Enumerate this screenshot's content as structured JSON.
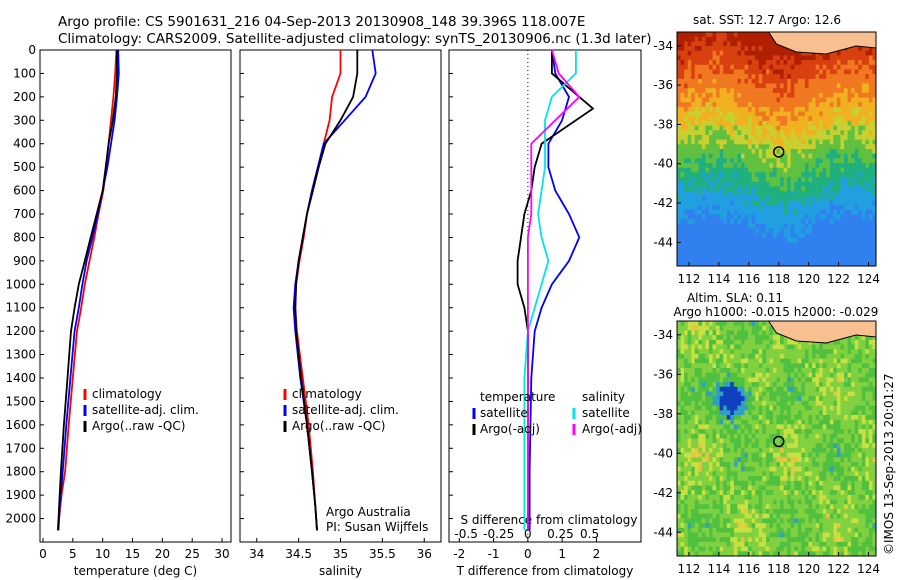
{
  "header": {
    "line1": "Argo profile: CS 5901631_216 04-Sep-2013 20130908_148 39.396S 118.007E",
    "line2": "Climatology: CARS2009. Satellite-adjusted climatology: synTS_20130906.nc (1.3d later)"
  },
  "colors": {
    "climatology": "#ff0000",
    "satellite": "#0000ff",
    "argo": "#000000",
    "satellite_salinity": "#00e5e5",
    "argo_salinity_adj": "#ff00ff"
  },
  "chart_data": [
    {
      "type": "line",
      "panel": "temperature",
      "xlabel": "temperature (deg C)",
      "ylim": [
        2100,
        0
      ],
      "xlim": [
        -0.5,
        31.5
      ],
      "xticks": [
        0,
        5,
        10,
        15,
        20,
        25,
        30
      ],
      "yticks": [
        0,
        100,
        200,
        300,
        400,
        500,
        600,
        700,
        800,
        900,
        1000,
        1100,
        1200,
        1300,
        1400,
        1500,
        1600,
        1700,
        1800,
        1900,
        2000
      ],
      "legend": [
        "climatology",
        "satellite-adj. clim.",
        "Argo(..raw -QC)"
      ],
      "series": [
        {
          "name": "climatology",
          "color": "#ff0000",
          "x": [
            12.3,
            12.1,
            11.8,
            11.4,
            11.0,
            10.6,
            10.1,
            9.3,
            8.6,
            7.8,
            7.0,
            6.4,
            5.7,
            5.0,
            4.3,
            3.7,
            3.1,
            2.7,
            2.5
          ],
          "y": [
            0,
            100,
            200,
            300,
            400,
            500,
            600,
            700,
            800,
            900,
            1000,
            1100,
            1200,
            1400,
            1600,
            1800,
            1900,
            2000,
            2050
          ]
        },
        {
          "name": "satellite-adj. clim.",
          "color": "#0000ff",
          "x": [
            12.6,
            12.7,
            12.4,
            12.0,
            11.4,
            10.8,
            10.0,
            9.2,
            8.3,
            7.3,
            6.6,
            6.0,
            5.3,
            4.6,
            3.9,
            3.3,
            2.8,
            2.6
          ],
          "y": [
            0,
            100,
            200,
            300,
            400,
            500,
            600,
            700,
            800,
            900,
            1000,
            1100,
            1200,
            1400,
            1600,
            1800,
            1950,
            2050
          ]
        },
        {
          "name": "Argo(..raw -QC)",
          "color": "#000000",
          "x": [
            12.4,
            12.4,
            12.2,
            11.7,
            11.0,
            10.5,
            10.0,
            9.0,
            8.0,
            7.0,
            6.0,
            5.3,
            4.7,
            4.1,
            3.5,
            3.0,
            2.7,
            2.5
          ],
          "y": [
            0,
            100,
            200,
            300,
            400,
            500,
            600,
            700,
            800,
            900,
            1000,
            1100,
            1200,
            1400,
            1600,
            1800,
            1950,
            2050
          ]
        }
      ]
    },
    {
      "type": "line",
      "panel": "salinity",
      "xlabel": "salinity",
      "ylim": [
        2100,
        0
      ],
      "xlim": [
        33.8,
        36.2
      ],
      "xticks": [
        34,
        34.5,
        35,
        35.5,
        36
      ],
      "xticklabels": [
        "34",
        "34.5",
        "35",
        "35.5",
        "36"
      ],
      "legend": [
        "climatology",
        "satellite-adj. clim.",
        "Argo(..raw -QC)"
      ],
      "annotation": [
        "Argo Australia",
        "PI: Susan Wijffels"
      ],
      "series": [
        {
          "name": "climatology",
          "color": "#ff0000",
          "x": [
            35.0,
            35.0,
            34.9,
            34.87,
            34.8,
            34.73,
            34.66,
            34.6,
            34.56,
            34.51,
            34.47,
            34.46,
            34.48,
            34.55,
            34.62,
            34.67,
            34.7,
            34.72
          ],
          "y": [
            0,
            100,
            200,
            300,
            400,
            500,
            600,
            700,
            800,
            900,
            1000,
            1100,
            1200,
            1400,
            1600,
            1800,
            1950,
            2050
          ]
        },
        {
          "name": "satellite-adj. clim.",
          "color": "#0000ff",
          "x": [
            35.38,
            35.42,
            35.3,
            35.05,
            34.8,
            34.73,
            34.66,
            34.6,
            34.55,
            34.5,
            34.46,
            34.44,
            34.46,
            34.52,
            34.6,
            34.66,
            34.7,
            34.72
          ],
          "y": [
            0,
            100,
            200,
            300,
            400,
            500,
            600,
            700,
            800,
            900,
            1000,
            1100,
            1200,
            1400,
            1600,
            1800,
            1950,
            2050
          ]
        },
        {
          "name": "Argo(..raw -QC)",
          "color": "#000000",
          "x": [
            35.2,
            35.2,
            35.15,
            35.0,
            34.82,
            34.74,
            34.67,
            34.6,
            34.55,
            34.5,
            34.47,
            34.46,
            34.47,
            34.53,
            34.6,
            34.66,
            34.7,
            34.72
          ],
          "y": [
            0,
            100,
            200,
            300,
            400,
            500,
            600,
            700,
            800,
            900,
            1000,
            1100,
            1200,
            1400,
            1600,
            1800,
            1950,
            2050
          ]
        }
      ]
    },
    {
      "type": "line",
      "panel": "differences",
      "xlabel": "T difference from climatology",
      "xlabel_top": "S difference from climatology",
      "ylim": [
        2100,
        0
      ],
      "xlim": [
        -2.3,
        3.3
      ],
      "xticks": [
        -2,
        -1,
        0,
        1,
        2
      ],
      "salinity_ticks": [
        "-0.5",
        "-0.25",
        "0",
        "0.25",
        "0.5"
      ],
      "legend_temperature": [
        "temperature",
        "satellite",
        "Argo(-adj)"
      ],
      "legend_salinity": [
        "salinity",
        "satellite",
        "Argo(-adj)"
      ],
      "series": [
        {
          "name": "satellite",
          "color": "#0000ff",
          "x": [
            0.7,
            0.8,
            1.2,
            1.0,
            0.6,
            0.6,
            0.8,
            1.2,
            1.5,
            1.2,
            0.7,
            0.4,
            0.2,
            0.1,
            0.05,
            0.05
          ],
          "y": [
            0,
            100,
            200,
            300,
            400,
            500,
            600,
            700,
            800,
            900,
            1000,
            1100,
            1200,
            1400,
            1800,
            2050
          ]
        },
        {
          "name": "Argo(-adj)",
          "color": "#000000",
          "x": [
            0.7,
            0.7,
            1.5,
            1.9,
            0.4,
            0.2,
            0.1,
            -0.1,
            -0.2,
            -0.3,
            -0.3,
            -0.1,
            0.0,
            0.0,
            0.0,
            0.0
          ],
          "y": [
            0,
            100,
            200,
            250,
            400,
            500,
            600,
            700,
            800,
            900,
            1000,
            1100,
            1200,
            1400,
            1800,
            2050
          ]
        },
        {
          "name": "satellite",
          "color": "#00e5e5",
          "x": [
            1.4,
            1.4,
            0.7,
            0.5,
            0.5,
            0.5,
            0.4,
            0.3,
            0.4,
            0.6,
            0.4,
            0.2,
            0.0,
            -0.1,
            -0.1,
            -0.1
          ],
          "y": [
            0,
            100,
            200,
            300,
            400,
            500,
            600,
            700,
            800,
            900,
            1000,
            1100,
            1200,
            1400,
            1800,
            2050
          ]
        },
        {
          "name": "Argo(-adj)",
          "color": "#ff00ff",
          "x": [
            0.7,
            0.9,
            1.5,
            0.8,
            0.1,
            0.1,
            0.1,
            0.1,
            0.0,
            0.0,
            0.0,
            0.0,
            0.0,
            0.0,
            0.0,
            0.0
          ],
          "y": [
            0,
            100,
            200,
            300,
            400,
            500,
            600,
            700,
            800,
            900,
            1000,
            1100,
            1200,
            1400,
            1800,
            2050
          ]
        }
      ]
    },
    {
      "type": "heatmap",
      "panel": "sst-map",
      "title": "sat. SST: 12.7  Argo: 12.6",
      "xticks": [
        112,
        114,
        116,
        118,
        120,
        122,
        124
      ],
      "yticks": [
        -34,
        -36,
        -38,
        -40,
        -42,
        -44
      ],
      "xlim": [
        111.2,
        124.5
      ],
      "ylim": [
        -45.2,
        -33.3
      ],
      "float_position": {
        "lon": 118.0,
        "lat": -39.4
      }
    },
    {
      "type": "heatmap",
      "panel": "sla-map",
      "title": "Altim. SLA: 0.11",
      "subtitle": "Argo h1000: -0.015 h2000: -0.029",
      "xticks": [
        112,
        114,
        116,
        118,
        120,
        122,
        124
      ],
      "yticks": [
        -34,
        -36,
        -38,
        -40,
        -42,
        -44
      ],
      "xlim": [
        111.2,
        124.5
      ],
      "ylim": [
        -45.2,
        -33.3
      ],
      "float_position": {
        "lon": 118.0,
        "lat": -39.4
      }
    }
  ],
  "side_label": "©IMOS 13-Sep-2013 20:01:27"
}
